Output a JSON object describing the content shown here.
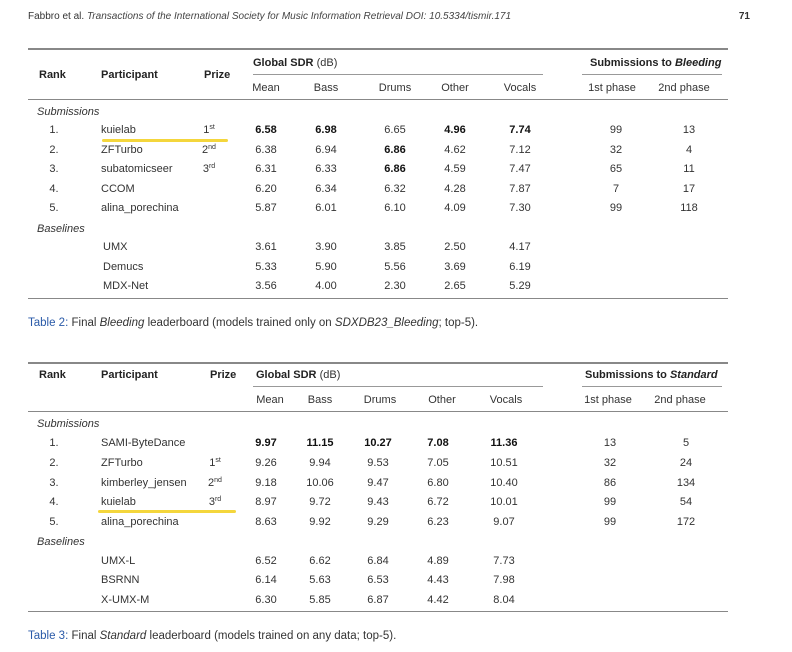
{
  "header": {
    "authors": "Fabbro et al.",
    "journal": "Transactions of the International Society for Music Information Retrieval",
    "doi": "DOI: 10.5334/tismir.171",
    "page": "71"
  },
  "table2": {
    "headers": {
      "rank": "Rank",
      "participant": "Participant",
      "prize": "Prize",
      "global_sdr": "Global SDR",
      "unit": "(dB)",
      "submissions_to": "Submissions to",
      "submissions_to_italic": "Bleeding",
      "cols": [
        "Mean",
        "Bass",
        "Drums",
        "Other",
        "Vocals"
      ],
      "phases": [
        "1st phase",
        "2nd phase"
      ]
    },
    "section_submissions": "Submissions",
    "section_baselines": "Baselines",
    "rows": [
      {
        "rank": "1.",
        "name": "kuielab",
        "prize": "1",
        "prize_sup": "st",
        "vals": [
          "6.58",
          "6.98",
          "6.65",
          "4.96",
          "7.74"
        ],
        "p1": "99",
        "p2": "13"
      },
      {
        "rank": "2.",
        "name": "ZFTurbo",
        "prize": "2",
        "prize_sup": "nd",
        "vals": [
          "6.38",
          "6.94",
          "6.86",
          "4.62",
          "7.12"
        ],
        "p1": "32",
        "p2": "4"
      },
      {
        "rank": "3.",
        "name": "subatomicseer",
        "prize": "3",
        "prize_sup": "rd",
        "vals": [
          "6.31",
          "6.33",
          "6.86",
          "4.59",
          "7.47"
        ],
        "p1": "65",
        "p2": "11"
      },
      {
        "rank": "4.",
        "name": "CCOM",
        "prize": "",
        "prize_sup": "",
        "vals": [
          "6.20",
          "6.34",
          "6.32",
          "4.28",
          "7.87"
        ],
        "p1": "7",
        "p2": "17"
      },
      {
        "rank": "5.",
        "name": "alina_porechina",
        "prize": "",
        "prize_sup": "",
        "vals": [
          "5.87",
          "6.01",
          "6.10",
          "4.09",
          "7.30"
        ],
        "p1": "99",
        "p2": "118"
      }
    ],
    "baselines": [
      {
        "name": "UMX",
        "vals": [
          "3.61",
          "3.90",
          "3.85",
          "2.50",
          "4.17"
        ]
      },
      {
        "name": "Demucs",
        "vals": [
          "5.33",
          "5.90",
          "5.56",
          "3.69",
          "6.19"
        ]
      },
      {
        "name": "MDX-Net",
        "vals": [
          "3.56",
          "4.00",
          "2.30",
          "2.65",
          "5.29"
        ]
      }
    ],
    "caption": {
      "label": "Table 2:",
      "t1": "Final",
      "t2": "Bleeding",
      "t3": "leaderboard (models trained only on",
      "t4": "SDXDB23_Bleeding",
      "t5": "; top-5)."
    }
  },
  "table3": {
    "headers": {
      "rank": "Rank",
      "participant": "Participant",
      "prize": "Prize",
      "global_sdr": "Global SDR",
      "unit": "(dB)",
      "submissions_to": "Submissions to",
      "submissions_to_italic": "Standard",
      "cols": [
        "Mean",
        "Bass",
        "Drums",
        "Other",
        "Vocals"
      ],
      "phases": [
        "1st phase",
        "2nd phase"
      ]
    },
    "section_submissions": "Submissions",
    "section_baselines": "Baselines",
    "rows": [
      {
        "rank": "1.",
        "name": "SAMI-ByteDance",
        "prize": "",
        "prize_sup": "",
        "vals": [
          "9.97",
          "11.15",
          "10.27",
          "7.08",
          "11.36"
        ],
        "p1": "13",
        "p2": "5"
      },
      {
        "rank": "2.",
        "name": "ZFTurbo",
        "prize": "1",
        "prize_sup": "st",
        "vals": [
          "9.26",
          "9.94",
          "9.53",
          "7.05",
          "10.51"
        ],
        "p1": "32",
        "p2": "24"
      },
      {
        "rank": "3.",
        "name": "kimberley_jensen",
        "prize": "2",
        "prize_sup": "nd",
        "vals": [
          "9.18",
          "10.06",
          "9.47",
          "6.80",
          "10.40"
        ],
        "p1": "86",
        "p2": "134"
      },
      {
        "rank": "4.",
        "name": "kuielab",
        "prize": "3",
        "prize_sup": "rd",
        "vals": [
          "8.97",
          "9.72",
          "9.43",
          "6.72",
          "10.01"
        ],
        "p1": "99",
        "p2": "54"
      },
      {
        "rank": "5.",
        "name": "alina_porechina",
        "prize": "",
        "prize_sup": "",
        "vals": [
          "8.63",
          "9.92",
          "9.29",
          "6.23",
          "9.07"
        ],
        "p1": "99",
        "p2": "172"
      }
    ],
    "baselines": [
      {
        "name": "UMX-L",
        "vals": [
          "6.52",
          "6.62",
          "6.84",
          "4.89",
          "7.73"
        ]
      },
      {
        "name": "BSRNN",
        "vals": [
          "6.14",
          "5.63",
          "6.53",
          "4.43",
          "7.98"
        ]
      },
      {
        "name": "X-UMX-M",
        "vals": [
          "6.30",
          "5.85",
          "6.87",
          "4.42",
          "8.04"
        ]
      }
    ],
    "caption": {
      "label": "Table 3:",
      "t1": "Final",
      "t2": "Standard",
      "t3": "leaderboard (models trained on any data; top-5)."
    }
  },
  "highlight_color": "#f4d63c",
  "caption_label_color": "#2a5aa8"
}
